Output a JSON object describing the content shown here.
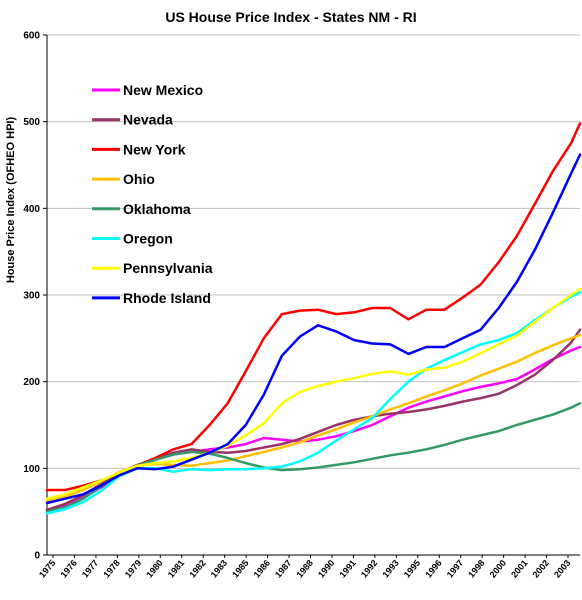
{
  "chart_data": {
    "type": "line",
    "title": "US House Price Index - States NM - RI",
    "xlabel": "",
    "ylabel": "House Price Index (OFHEO  HPI)",
    "ylim": [
      0,
      600
    ],
    "yticks": [
      0,
      100,
      200,
      300,
      400,
      500,
      600
    ],
    "xlim": [
      1975,
      2004.5
    ],
    "xtick_labels": [
      "1975",
      "1976",
      "1977",
      "1978",
      "1979",
      "1980",
      "1981",
      "1982",
      "1983",
      "1985",
      "1986",
      "1987",
      "1988",
      "1990",
      "1991",
      "1992",
      "1993",
      "1995",
      "1996",
      "1997",
      "1998",
      "2000",
      "2001",
      "2002",
      "2003"
    ],
    "grid": "horizontal",
    "legend_position": "upper-left inside",
    "series": [
      {
        "name": "New Mexico",
        "color": "#ff00ff",
        "points": [
          [
            1975,
            52
          ],
          [
            1976,
            57
          ],
          [
            1977,
            66
          ],
          [
            1978,
            78
          ],
          [
            1979,
            92
          ],
          [
            1980,
            103
          ],
          [
            1981,
            110
          ],
          [
            1982,
            116
          ],
          [
            1983,
            119
          ],
          [
            1984,
            122
          ],
          [
            1985,
            124
          ],
          [
            1986,
            128
          ],
          [
            1987,
            135
          ],
          [
            1988,
            133
          ],
          [
            1989,
            131
          ],
          [
            1990,
            133
          ],
          [
            1991,
            137
          ],
          [
            1992,
            143
          ],
          [
            1993,
            150
          ],
          [
            1994,
            160
          ],
          [
            1995,
            170
          ],
          [
            1996,
            177
          ],
          [
            1997,
            183
          ],
          [
            1998,
            189
          ],
          [
            1999,
            194
          ],
          [
            2000,
            198
          ],
          [
            2001,
            203
          ],
          [
            2002,
            214
          ],
          [
            2003,
            226
          ],
          [
            2004,
            236
          ],
          [
            2004.5,
            240
          ]
        ]
      },
      {
        "name": "Nevada",
        "color": "#993366",
        "points": [
          [
            1975,
            52
          ],
          [
            1976,
            59
          ],
          [
            1977,
            69
          ],
          [
            1978,
            82
          ],
          [
            1979,
            95
          ],
          [
            1980,
            104
          ],
          [
            1981,
            111
          ],
          [
            1982,
            118
          ],
          [
            1983,
            122
          ],
          [
            1984,
            119
          ],
          [
            1985,
            118
          ],
          [
            1986,
            120
          ],
          [
            1987,
            124
          ],
          [
            1988,
            128
          ],
          [
            1989,
            134
          ],
          [
            1990,
            142
          ],
          [
            1991,
            150
          ],
          [
            1992,
            156
          ],
          [
            1993,
            160
          ],
          [
            1994,
            163
          ],
          [
            1995,
            165
          ],
          [
            1996,
            168
          ],
          [
            1997,
            172
          ],
          [
            1998,
            177
          ],
          [
            1999,
            181
          ],
          [
            2000,
            186
          ],
          [
            2001,
            196
          ],
          [
            2002,
            208
          ],
          [
            2003,
            225
          ],
          [
            2004,
            245
          ],
          [
            2004.5,
            260
          ]
        ]
      },
      {
        "name": "New York",
        "color": "#ff0000",
        "points": [
          [
            1975,
            75
          ],
          [
            1976,
            75
          ],
          [
            1977,
            80
          ],
          [
            1978,
            86
          ],
          [
            1979,
            94
          ],
          [
            1980,
            103
          ],
          [
            1981,
            112
          ],
          [
            1982,
            122
          ],
          [
            1983,
            128
          ],
          [
            1984,
            150
          ],
          [
            1985,
            175
          ],
          [
            1986,
            212
          ],
          [
            1987,
            250
          ],
          [
            1988,
            278
          ],
          [
            1989,
            282
          ],
          [
            1990,
            283
          ],
          [
            1991,
            278
          ],
          [
            1992,
            280
          ],
          [
            1993,
            285
          ],
          [
            1994,
            285
          ],
          [
            1995,
            272
          ],
          [
            1996,
            283
          ],
          [
            1997,
            283
          ],
          [
            1998,
            297
          ],
          [
            1999,
            312
          ],
          [
            2000,
            338
          ],
          [
            2001,
            368
          ],
          [
            2002,
            405
          ],
          [
            2003,
            443
          ],
          [
            2004,
            475
          ],
          [
            2004.5,
            498
          ]
        ]
      },
      {
        "name": "Ohio",
        "color": "#ffc000",
        "points": [
          [
            1975,
            62
          ],
          [
            1976,
            67
          ],
          [
            1977,
            75
          ],
          [
            1978,
            85
          ],
          [
            1979,
            96
          ],
          [
            1980,
            103
          ],
          [
            1981,
            105
          ],
          [
            1982,
            104
          ],
          [
            1983,
            103
          ],
          [
            1984,
            106
          ],
          [
            1985,
            109
          ],
          [
            1986,
            114
          ],
          [
            1987,
            119
          ],
          [
            1988,
            124
          ],
          [
            1989,
            130
          ],
          [
            1990,
            138
          ],
          [
            1991,
            145
          ],
          [
            1992,
            153
          ],
          [
            1993,
            160
          ],
          [
            1994,
            168
          ],
          [
            1995,
            175
          ],
          [
            1996,
            183
          ],
          [
            1997,
            190
          ],
          [
            1998,
            198
          ],
          [
            1999,
            207
          ],
          [
            2000,
            215
          ],
          [
            2001,
            223
          ],
          [
            2002,
            233
          ],
          [
            2003,
            242
          ],
          [
            2004,
            250
          ],
          [
            2004.5,
            254
          ]
        ]
      },
      {
        "name": "Oklahoma",
        "color": "#339966",
        "points": [
          [
            1975,
            50
          ],
          [
            1976,
            55
          ],
          [
            1977,
            65
          ],
          [
            1978,
            79
          ],
          [
            1979,
            93
          ],
          [
            1980,
            103
          ],
          [
            1981,
            110
          ],
          [
            1982,
            116
          ],
          [
            1983,
            119
          ],
          [
            1984,
            117
          ],
          [
            1985,
            112
          ],
          [
            1986,
            106
          ],
          [
            1987,
            101
          ],
          [
            1988,
            98
          ],
          [
            1989,
            99
          ],
          [
            1990,
            101
          ],
          [
            1991,
            104
          ],
          [
            1992,
            107
          ],
          [
            1993,
            111
          ],
          [
            1994,
            115
          ],
          [
            1995,
            118
          ],
          [
            1996,
            122
          ],
          [
            1997,
            127
          ],
          [
            1998,
            133
          ],
          [
            1999,
            138
          ],
          [
            2000,
            143
          ],
          [
            2001,
            150
          ],
          [
            2002,
            156
          ],
          [
            2003,
            162
          ],
          [
            2004,
            170
          ],
          [
            2004.5,
            175
          ]
        ]
      },
      {
        "name": "Oregon",
        "color": "#00ffff",
        "points": [
          [
            1975,
            48
          ],
          [
            1976,
            53
          ],
          [
            1977,
            61
          ],
          [
            1978,
            74
          ],
          [
            1979,
            91
          ],
          [
            1980,
            100
          ],
          [
            1981,
            100
          ],
          [
            1982,
            96
          ],
          [
            1983,
            99
          ],
          [
            1984,
            98
          ],
          [
            1985,
            99
          ],
          [
            1986,
            99
          ],
          [
            1987,
            100
          ],
          [
            1988,
            102
          ],
          [
            1989,
            108
          ],
          [
            1990,
            118
          ],
          [
            1991,
            132
          ],
          [
            1992,
            145
          ],
          [
            1993,
            158
          ],
          [
            1994,
            180
          ],
          [
            1995,
            200
          ],
          [
            1996,
            215
          ],
          [
            1997,
            225
          ],
          [
            1998,
            234
          ],
          [
            1999,
            243
          ],
          [
            2000,
            248
          ],
          [
            2001,
            256
          ],
          [
            2002,
            271
          ],
          [
            2003,
            285
          ],
          [
            2004,
            298
          ],
          [
            2004.5,
            303
          ]
        ]
      },
      {
        "name": "Pennsylvania",
        "color": "#ffff00",
        "points": [
          [
            1975,
            65
          ],
          [
            1976,
            70
          ],
          [
            1977,
            78
          ],
          [
            1978,
            86
          ],
          [
            1979,
            95
          ],
          [
            1980,
            103
          ],
          [
            1981,
            106
          ],
          [
            1982,
            108
          ],
          [
            1983,
            112
          ],
          [
            1984,
            118
          ],
          [
            1985,
            126
          ],
          [
            1986,
            138
          ],
          [
            1987,
            152
          ],
          [
            1988,
            175
          ],
          [
            1989,
            188
          ],
          [
            1990,
            195
          ],
          [
            1991,
            200
          ],
          [
            1992,
            204
          ],
          [
            1993,
            209
          ],
          [
            1994,
            212
          ],
          [
            1995,
            208
          ],
          [
            1996,
            214
          ],
          [
            1997,
            216
          ],
          [
            1998,
            223
          ],
          [
            1999,
            233
          ],
          [
            2000,
            243
          ],
          [
            2001,
            253
          ],
          [
            2002,
            269
          ],
          [
            2003,
            285
          ],
          [
            2004,
            300
          ],
          [
            2004.5,
            307
          ]
        ]
      },
      {
        "name": "Rhode Island",
        "color": "#0000ff",
        "points": [
          [
            1975,
            60
          ],
          [
            1976,
            65
          ],
          [
            1977,
            70
          ],
          [
            1978,
            80
          ],
          [
            1979,
            92
          ],
          [
            1980,
            100
          ],
          [
            1981,
            99
          ],
          [
            1982,
            102
          ],
          [
            1983,
            110
          ],
          [
            1984,
            118
          ],
          [
            1985,
            128
          ],
          [
            1986,
            150
          ],
          [
            1987,
            185
          ],
          [
            1988,
            230
          ],
          [
            1989,
            252
          ],
          [
            1990,
            265
          ],
          [
            1991,
            258
          ],
          [
            1992,
            248
          ],
          [
            1993,
            244
          ],
          [
            1994,
            243
          ],
          [
            1995,
            232
          ],
          [
            1996,
            240
          ],
          [
            1997,
            240
          ],
          [
            1998,
            250
          ],
          [
            1999,
            260
          ],
          [
            2000,
            285
          ],
          [
            2001,
            315
          ],
          [
            2002,
            352
          ],
          [
            2003,
            395
          ],
          [
            2004,
            440
          ],
          [
            2004.5,
            462
          ]
        ]
      }
    ]
  }
}
